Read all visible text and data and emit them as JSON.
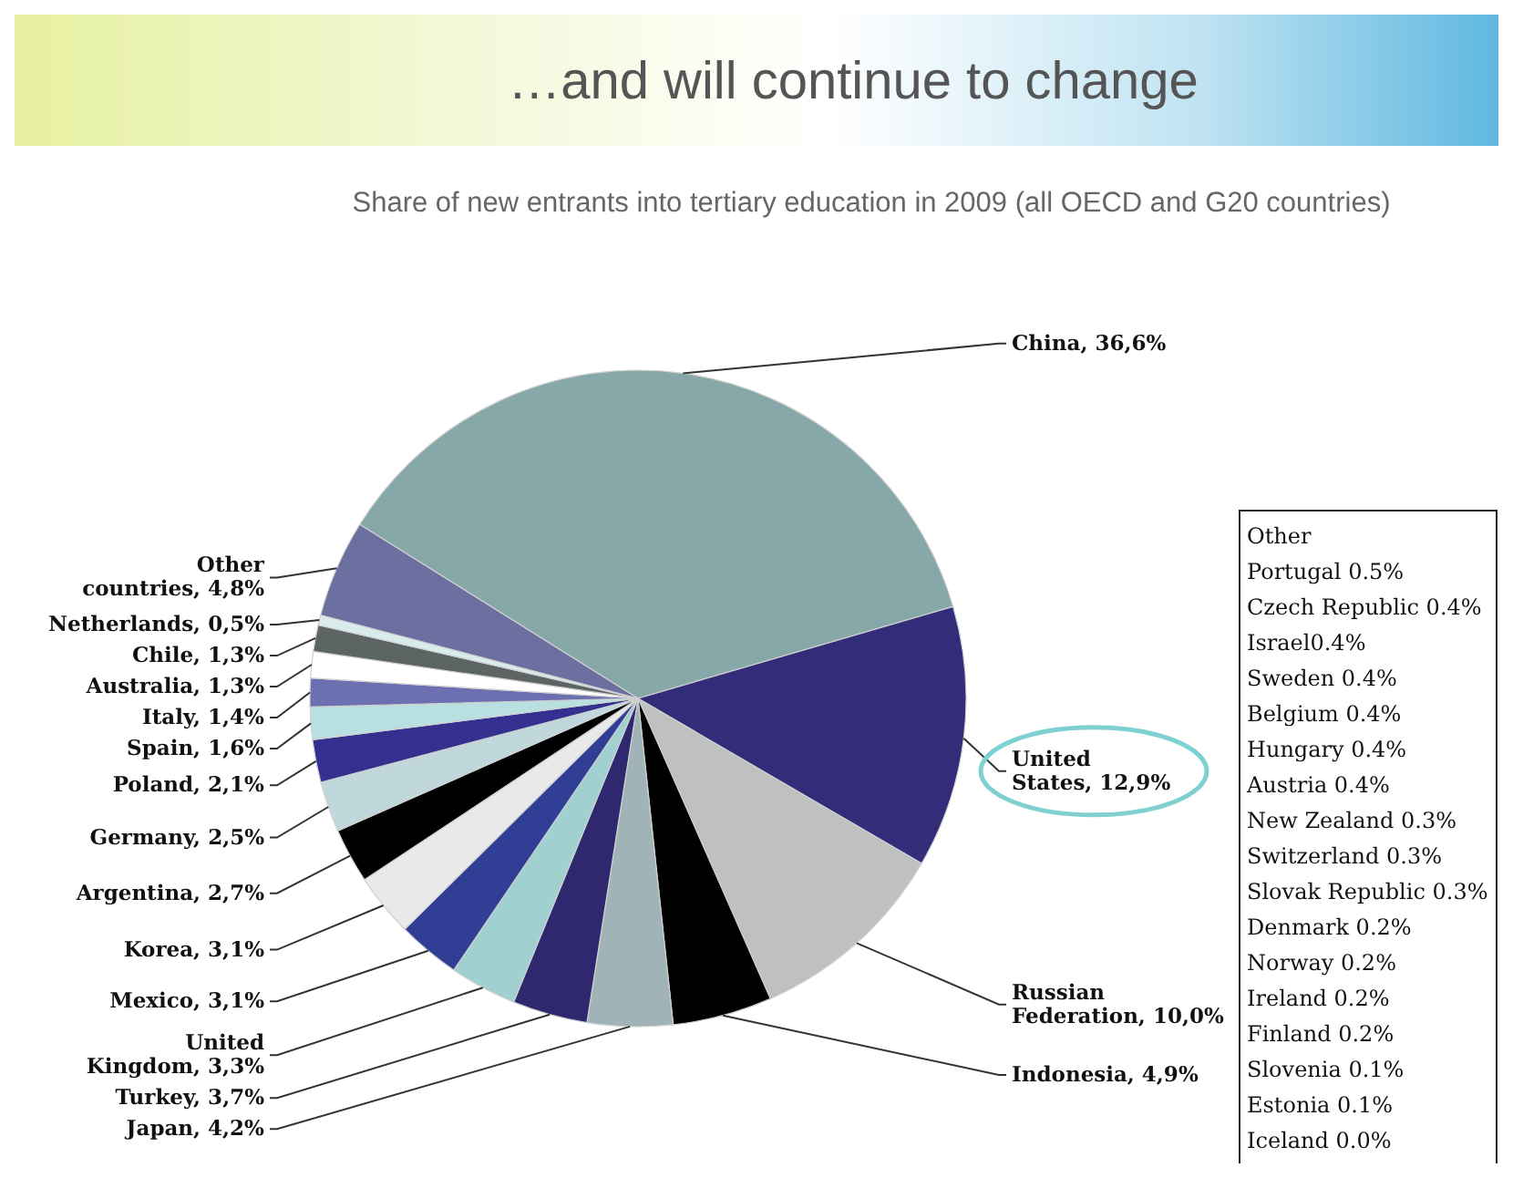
{
  "chart_data": [
    {
      "type": "pie",
      "title": "…and will continue to change",
      "subtitle": "Share of new entrants into tertiary education in 2009 (all OECD and G20 countries)",
      "categories": [
        "China",
        "United States",
        "Russian Federation",
        "Indonesia",
        "Japan",
        "Turkey",
        "United Kingdom",
        "Mexico",
        "Korea",
        "Argentina",
        "Germany",
        "Poland",
        "Spain",
        "Italy",
        "Australia",
        "Chile",
        "Netherlands",
        "Other countries"
      ],
      "values": [
        36.6,
        12.9,
        10.0,
        4.9,
        4.2,
        3.7,
        3.3,
        3.1,
        3.1,
        2.7,
        2.5,
        2.1,
        1.6,
        1.4,
        1.3,
        1.3,
        0.5,
        4.8
      ],
      "value_labels": [
        "36,6%",
        "12,9%",
        "10,0%",
        "4,9%",
        "4,2%",
        "3,7%",
        "3,3%",
        "3,1%",
        "3,1%",
        "2,7%",
        "2,5%",
        "2,1%",
        "1,6%",
        "1,4%",
        "1,3%",
        "1,3%",
        "0,5%",
        "4,8%"
      ],
      "colors": [
        "#86a8a8",
        "#332c78",
        "#bfc0c0",
        "#000000",
        "#a0b4b8",
        "#30286e",
        "#a0d0d0",
        "#303e96",
        "#e8eaea",
        "#000000",
        "#c0d8dc",
        "#343090",
        "#b8e0e0",
        "#6c70b0",
        "#ffffff",
        "#5c6464",
        "#d8ecec",
        "#6c70a0"
      ]
    },
    {
      "type": "other",
      "title": "Other",
      "annotations": [
        "Portugal 0.5%",
        "Czech Republic 0.4%",
        "Israel0.4%",
        "Sweden 0.4%",
        "Belgium 0.4%",
        "Hungary 0.4%",
        "Austria 0.4%",
        "New Zealand 0.3%",
        "Switzerland 0.3%",
        "Slovak Republic 0.3%",
        "Denmark 0.2%",
        "Norway 0.2%",
        "Ireland 0.2%",
        "Finland 0.2%",
        "Slovenia 0.1%",
        "Estonia 0.1%",
        "Iceland 0.0%"
      ]
    }
  ]
}
